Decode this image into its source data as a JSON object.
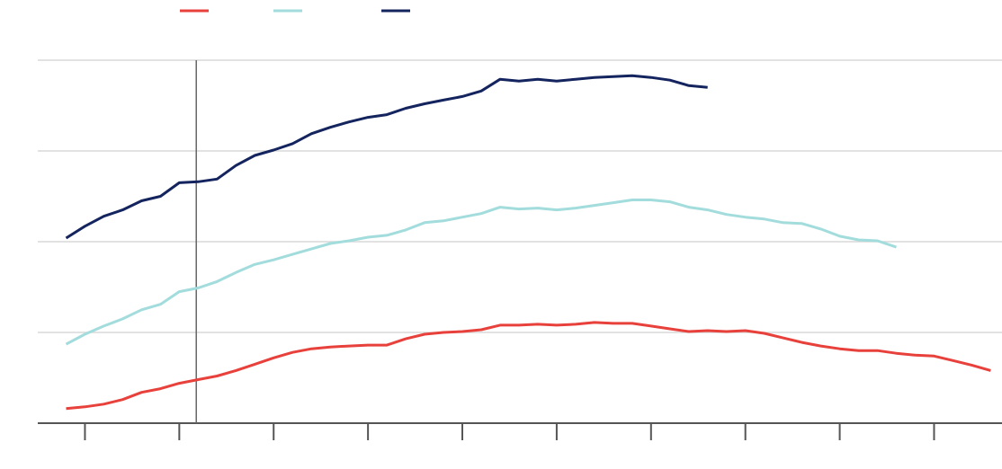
{
  "chart_data": {
    "type": "line",
    "x": [
      0,
      1,
      2,
      3,
      4,
      5,
      6,
      7,
      8,
      9,
      10,
      11,
      12,
      13,
      14,
      15,
      16,
      17,
      18,
      19,
      20,
      21,
      22,
      23,
      24,
      25,
      26,
      27,
      28,
      29,
      30,
      31,
      32,
      33,
      34,
      35,
      36,
      37,
      38,
      39,
      40,
      41,
      42,
      43,
      44,
      45,
      46,
      47,
      48,
      49
    ],
    "series": [
      {
        "color": "#e8413c",
        "values": [
          0.16,
          0.18,
          0.21,
          0.26,
          0.34,
          0.38,
          0.44,
          0.48,
          0.52,
          0.58,
          0.65,
          0.72,
          0.78,
          0.82,
          0.84,
          0.85,
          0.86,
          0.86,
          0.93,
          0.98,
          1.0,
          1.01,
          1.03,
          1.08,
          1.08,
          1.09,
          1.08,
          1.09,
          1.11,
          1.1,
          1.1,
          1.07,
          1.04,
          1.01,
          1.02,
          1.01,
          1.02,
          0.99,
          0.94,
          0.89,
          0.85,
          0.82,
          0.8,
          0.8,
          0.77,
          0.75,
          0.74,
          0.69,
          0.64,
          0.58
        ]
      },
      {
        "color": "#a3dcdc",
        "values": [
          0.87,
          0.98,
          1.07,
          1.15,
          1.25,
          1.31,
          1.45,
          1.49,
          1.56,
          1.66,
          1.75,
          1.8,
          1.86,
          1.92,
          1.98,
          2.01,
          2.05,
          2.07,
          2.13,
          2.21,
          2.23,
          2.27,
          2.31,
          2.38,
          2.36,
          2.37,
          2.35,
          2.37,
          2.4,
          2.43,
          2.46,
          2.46,
          2.44,
          2.38,
          2.35,
          2.3,
          2.27,
          2.25,
          2.21,
          2.2,
          2.14,
          2.06,
          2.02,
          2.01,
          1.94,
          null,
          null,
          null,
          null,
          null
        ]
      },
      {
        "color": "#14245e",
        "values": [
          2.04,
          2.17,
          2.28,
          2.35,
          2.45,
          2.5,
          2.65,
          2.66,
          2.69,
          2.84,
          2.95,
          3.01,
          3.08,
          3.19,
          3.26,
          3.32,
          3.37,
          3.4,
          3.47,
          3.52,
          3.56,
          3.6,
          3.66,
          3.79,
          3.77,
          3.79,
          3.77,
          3.79,
          3.81,
          3.82,
          3.83,
          3.81,
          3.78,
          3.72,
          3.7,
          null,
          null,
          null,
          null,
          null,
          null,
          null,
          null,
          null,
          null,
          null,
          null,
          null,
          null,
          null
        ]
      }
    ],
    "xlim": [
      -1.5,
      49.6
    ],
    "xticks": [
      1,
      6,
      11,
      16,
      21,
      26,
      31,
      36,
      41,
      46
    ],
    "ylim": [
      0,
      4
    ],
    "yticks": [
      0,
      1,
      2,
      3,
      4
    ],
    "grid": true,
    "cursor_x": 6.9
  }
}
